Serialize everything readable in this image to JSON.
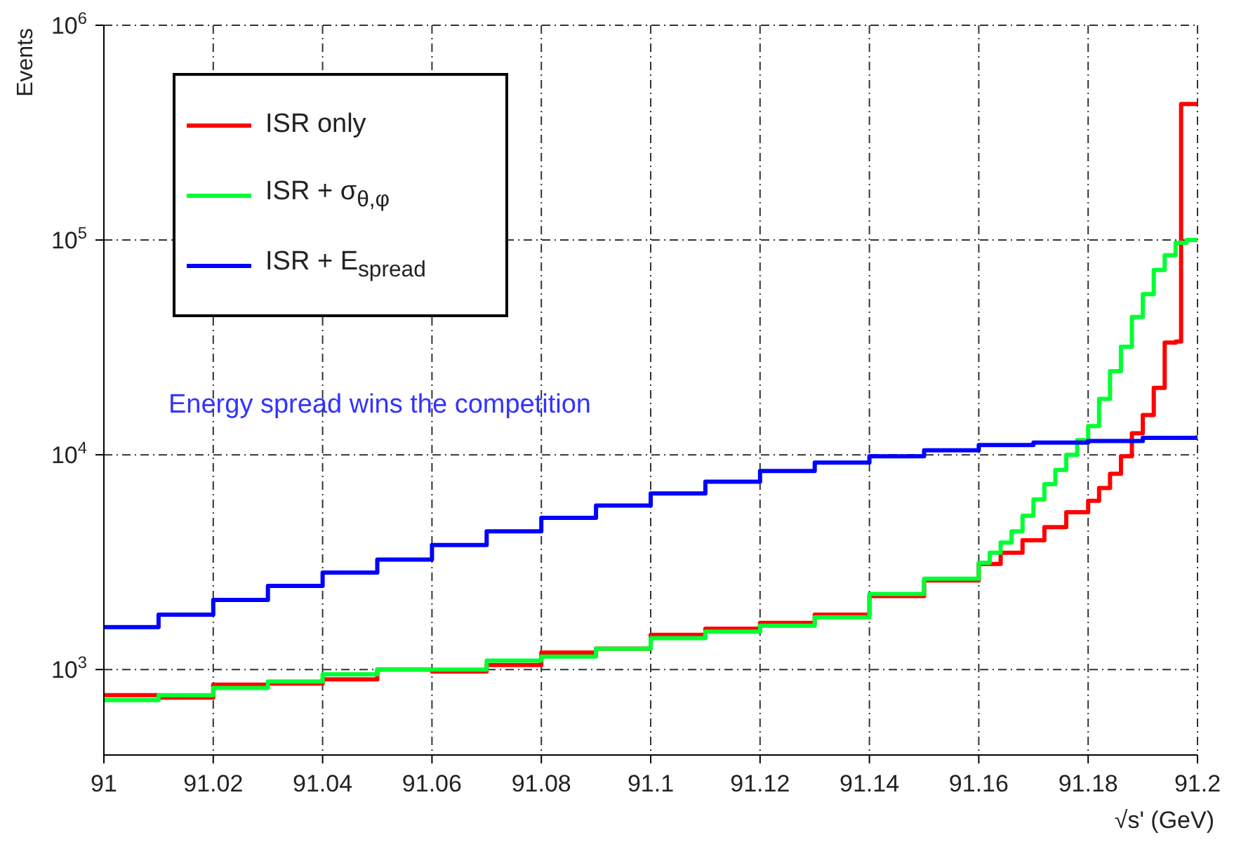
{
  "chart_data": {
    "type": "step",
    "xlabel": "√s' (GeV)",
    "ylabel": "Events",
    "log": "y",
    "grid": true,
    "legend": "top left",
    "line_style": "solid",
    "marker": "none",
    "xlim": [
      91,
      91.2
    ],
    "xticks": [
      91,
      91.02,
      91.04,
      91.06,
      91.08,
      91.1,
      91.12,
      91.14,
      91.16,
      91.18,
      91.2
    ],
    "ylim": [
      400,
      1000000
    ],
    "yticks": [
      {
        "value": 1000,
        "label": "10$^{3}$"
      },
      {
        "value": 10000,
        "label": "10$^{4}$"
      },
      {
        "value": 100000,
        "label": "10$^{5}$"
      },
      {
        "value": 1000000,
        "label": "10$^{6}$"
      }
    ],
    "annotations": [
      "Energy spread wins the competition"
    ],
    "series": [
      {
        "name": "ISR only",
        "color": "#ff0000",
        "x": [
          91,
          91.01,
          91.02,
          91.03,
          91.04,
          91.05,
          91.06,
          91.07,
          91.08,
          91.09,
          91.1,
          91.11,
          91.12,
          91.13,
          91.14,
          91.15,
          91.16,
          91.164,
          91.168,
          91.172,
          91.176,
          91.18,
          91.182,
          91.184,
          91.186,
          91.188,
          91.19,
          91.192,
          91.194,
          91.196,
          91.197,
          91.2
        ],
        "values": [
          760,
          740,
          850,
          860,
          900,
          1000,
          980,
          1050,
          1200,
          1250,
          1450,
          1550,
          1650,
          1800,
          2200,
          2600,
          3100,
          3500,
          4000,
          4600,
          5400,
          6100,
          7000,
          8150,
          9850,
          12600,
          15300,
          20500,
          33300,
          33700,
          430000,
          430000
        ]
      },
      {
        "name": "ISR + σ$_{θ,φ}$",
        "color": "#00ff33",
        "x": [
          91,
          91.01,
          91.02,
          91.03,
          91.04,
          91.05,
          91.06,
          91.07,
          91.08,
          91.09,
          91.1,
          91.11,
          91.12,
          91.13,
          91.14,
          91.15,
          91.16,
          91.162,
          91.164,
          91.166,
          91.168,
          91.17,
          91.172,
          91.174,
          91.176,
          91.178,
          91.18,
          91.182,
          91.184,
          91.186,
          91.188,
          91.19,
          91.192,
          91.194,
          91.196,
          91.198,
          91.2
        ],
        "values": [
          720,
          760,
          820,
          880,
          950,
          1000,
          1000,
          1100,
          1150,
          1250,
          1400,
          1500,
          1600,
          1750,
          2250,
          2650,
          3140,
          3500,
          3900,
          4400,
          5200,
          6200,
          7300,
          8500,
          10000,
          11700,
          13600,
          18200,
          24500,
          31800,
          43800,
          56000,
          72500,
          85000,
          97000,
          100000,
          100000
        ]
      },
      {
        "name": "ISR + E$_{spread}$",
        "color": "#0000ff",
        "x": [
          91,
          91.01,
          91.02,
          91.03,
          91.04,
          91.05,
          91.06,
          91.07,
          91.08,
          91.09,
          91.1,
          91.11,
          91.12,
          91.13,
          91.14,
          91.15,
          91.16,
          91.17,
          91.18,
          91.19,
          91.2
        ],
        "values": [
          1575,
          1800,
          2110,
          2450,
          2830,
          3250,
          3800,
          4400,
          5090,
          5800,
          6600,
          7500,
          8400,
          9200,
          9850,
          10500,
          11100,
          11400,
          11600,
          12000,
          12300
        ]
      }
    ]
  }
}
